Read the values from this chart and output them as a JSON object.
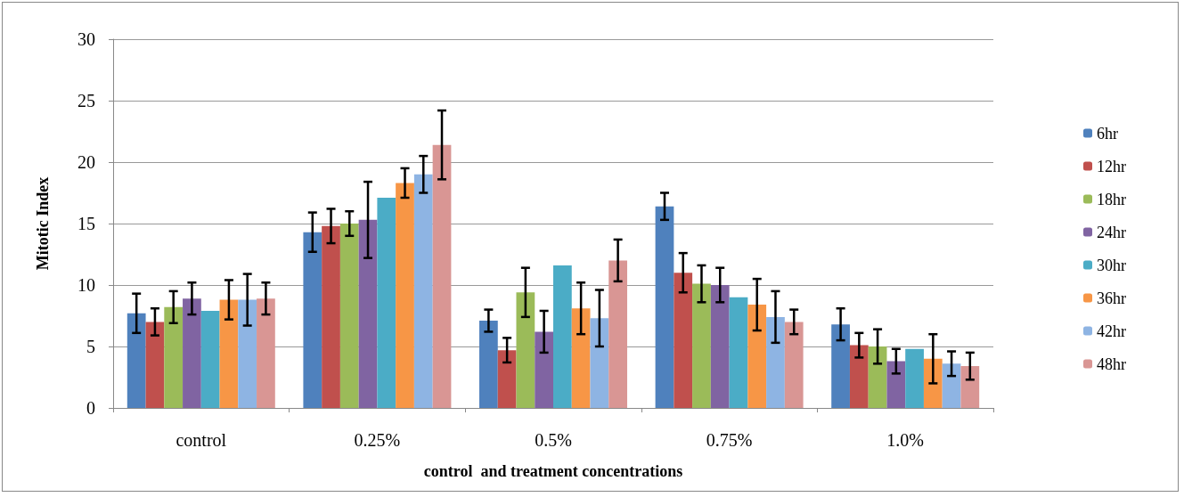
{
  "chart_data": {
    "type": "bar",
    "xlabel": "control  and treatment concentrations",
    "ylabel": "Mitotic Index",
    "categories": [
      "control",
      "0.25%",
      "0.5%",
      "0.75%",
      "1.0%"
    ],
    "ylim": [
      0,
      30
    ],
    "yticks": [
      0,
      5,
      10,
      15,
      20,
      25,
      30
    ],
    "grid": "y",
    "legend": "right",
    "series": [
      {
        "name": "6hr",
        "color": "#4f81bd",
        "values": [
          7.7,
          14.3,
          7.1,
          16.4,
          6.8
        ],
        "errors": [
          1.6,
          1.6,
          0.9,
          1.1,
          1.3
        ]
      },
      {
        "name": "12hr",
        "color": "#c0504d",
        "values": [
          7.0,
          14.8,
          4.7,
          11.0,
          5.1
        ],
        "errors": [
          1.1,
          1.4,
          1.0,
          1.6,
          1.0
        ]
      },
      {
        "name": "18hr",
        "color": "#9bbb59",
        "values": [
          8.2,
          15.0,
          9.4,
          10.1,
          5.0
        ],
        "errors": [
          1.3,
          1.0,
          2.0,
          1.5,
          1.4
        ]
      },
      {
        "name": "24hr",
        "color": "#8064a2",
        "values": [
          8.9,
          15.3,
          6.2,
          10.0,
          3.8
        ],
        "errors": [
          1.3,
          3.1,
          1.7,
          1.4,
          1.0
        ]
      },
      {
        "name": "30hr",
        "color": "#4bacc6",
        "values": [
          7.9,
          17.1,
          11.6,
          9.0,
          4.8
        ]
      },
      {
        "name": "36hr",
        "color": "#f79646",
        "values": [
          8.8,
          18.3,
          8.1,
          8.4,
          4.0
        ],
        "errors": [
          1.6,
          1.2,
          2.1,
          2.1,
          2.0
        ]
      },
      {
        "name": "42hr",
        "color": "#8eb4e3",
        "values": [
          8.8,
          19.0,
          7.3,
          7.4,
          3.6
        ],
        "errors": [
          2.1,
          1.5,
          2.3,
          2.1,
          1.0
        ]
      },
      {
        "name": "48hr",
        "color": "#d99694",
        "values": [
          8.9,
          21.4,
          12.0,
          7.0,
          3.4
        ],
        "errors": [
          1.3,
          2.8,
          1.7,
          1.0,
          1.1
        ]
      }
    ]
  }
}
